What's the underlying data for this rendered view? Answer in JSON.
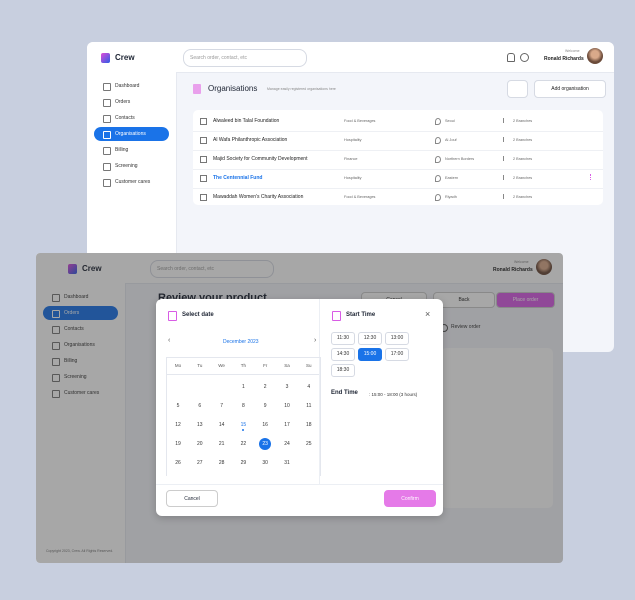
{
  "back": {
    "logo": "Crew",
    "search": "Search order, contact, etc",
    "welcome": "Welcome",
    "user": "Ronald Richards",
    "nav": [
      "Dashboard",
      "Orders",
      "Contacts",
      "Organisations",
      "Billing",
      "Screening",
      "Customer cares"
    ],
    "active_nav": 3,
    "title": "Organisations",
    "subtitle": "Manage easily registered organisations here",
    "add_button": "Add organisation",
    "rows": [
      {
        "name": "Alwaleed bin Talal Foundation",
        "category": "Food & Beverages",
        "location": "Seoul",
        "branches": "2 Branches"
      },
      {
        "name": "Al Wafa Philanthropic Association",
        "category": "Hospitality",
        "location": "Al Jouf",
        "branches": "2 Branches"
      },
      {
        "name": "Majid Society for Community Development",
        "category": "Finance",
        "location": "Northern Borders",
        "branches": "2 Branches"
      },
      {
        "name": "The Centennial Fund",
        "category": "Hospitality",
        "location": "Eastern",
        "branches": "2 Branches",
        "highlighted": true
      },
      {
        "name": "Mawaddah Women's Charity Association",
        "category": "Food & Beverages",
        "location": "Riyadh",
        "branches": "2 Branches"
      }
    ]
  },
  "front": {
    "logo": "Crew",
    "search": "Search order, contact, etc",
    "welcome": "Welcome",
    "user": "Ronald Richards",
    "nav": [
      "Dashboard",
      "Orders",
      "Contacts",
      "Organisations",
      "Billing",
      "Screening",
      "Customer cares"
    ],
    "active_nav": 1,
    "title": "Review your product",
    "cancel": "Cancel",
    "back": "Back",
    "place_order": "Place order",
    "step": "Review order",
    "footer": "Copyright 2023, Crew. All Rights Reserved."
  },
  "modal": {
    "date_title": "Select date",
    "month": "December 2023",
    "weekdays": [
      "Mo",
      "Tu",
      "We",
      "Th",
      "Fr",
      "Sa",
      "Su"
    ],
    "days": [
      null,
      null,
      null,
      1,
      2,
      3,
      4,
      5,
      6,
      7,
      8,
      9,
      10,
      11,
      12,
      13,
      14,
      {
        "day": 15,
        "today": true
      },
      16,
      17,
      18,
      19,
      20,
      21,
      22,
      {
        "day": 23,
        "selected": true
      },
      24,
      25,
      26,
      27,
      28,
      29,
      30,
      31
    ],
    "time_title": "Start Time",
    "times": [
      "11:30",
      "12:30",
      "13:00",
      "14:30",
      {
        "time": "15:00",
        "selected": true
      },
      "17:00",
      "18:30"
    ],
    "end_label": "End Time",
    "end_value": ": 15:00 - 18:00 (3 hours)",
    "cancel": "Cancel",
    "confirm": "Confirm"
  }
}
